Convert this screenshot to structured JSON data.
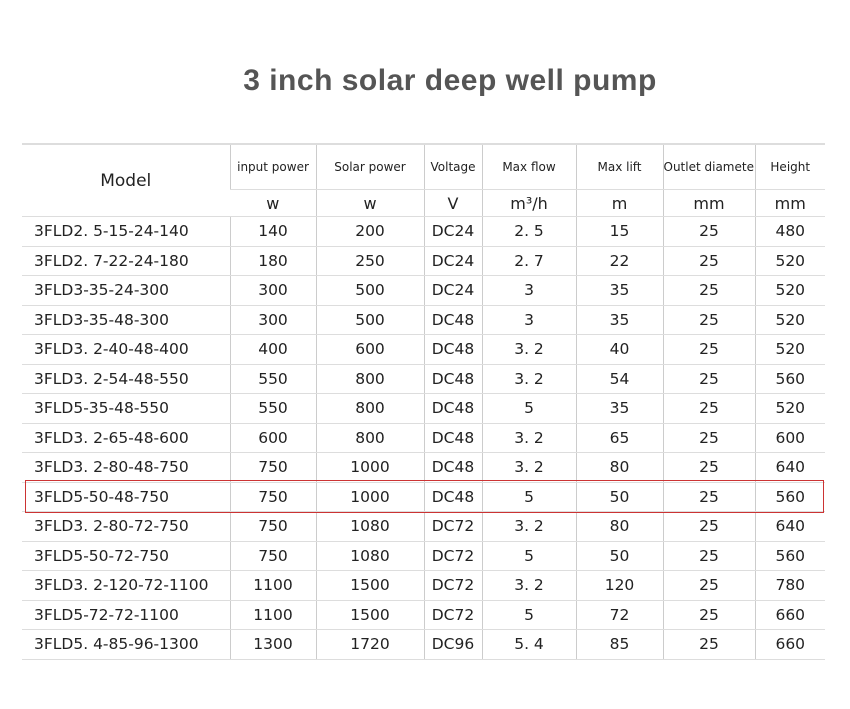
{
  "title": "3 inch solar deep well pump",
  "table": {
    "headers": [
      "Model",
      "input power",
      "Solar power",
      "Voltage",
      "Max flow",
      "Max lift",
      "Outlet diameter",
      "Height"
    ],
    "units": [
      "w",
      "w",
      "V",
      "m³/h",
      "m",
      "mm",
      "mm"
    ],
    "highlight_row": 9,
    "rows": [
      [
        "3FLD2. 5-15-24-140",
        "140",
        "200",
        "DC24",
        "2. 5",
        "15",
        "25",
        "480"
      ],
      [
        "3FLD2. 7-22-24-180",
        "180",
        "250",
        "DC24",
        "2. 7",
        "22",
        "25",
        "520"
      ],
      [
        "3FLD3-35-24-300",
        "300",
        "500",
        "DC24",
        "3",
        "35",
        "25",
        "520"
      ],
      [
        "3FLD3-35-48-300",
        "300",
        "500",
        "DC48",
        "3",
        "35",
        "25",
        "520"
      ],
      [
        "3FLD3. 2-40-48-400",
        "400",
        "600",
        "DC48",
        "3. 2",
        "40",
        "25",
        "520"
      ],
      [
        "3FLD3. 2-54-48-550",
        "550",
        "800",
        "DC48",
        "3. 2",
        "54",
        "25",
        "560"
      ],
      [
        "3FLD5-35-48-550",
        "550",
        "800",
        "DC48",
        "5",
        "35",
        "25",
        "520"
      ],
      [
        "3FLD3. 2-65-48-600",
        "600",
        "800",
        "DC48",
        "3. 2",
        "65",
        "25",
        "600"
      ],
      [
        "3FLD3. 2-80-48-750",
        "750",
        "1000",
        "DC48",
        "3. 2",
        "80",
        "25",
        "640"
      ],
      [
        "3FLD5-50-48-750",
        "750",
        "1000",
        "DC48",
        "5",
        "50",
        "25",
        "560"
      ],
      [
        "3FLD3. 2-80-72-750",
        "750",
        "1080",
        "DC72",
        "3. 2",
        "80",
        "25",
        "640"
      ],
      [
        "3FLD5-50-72-750",
        "750",
        "1080",
        "DC72",
        "5",
        "50",
        "25",
        "560"
      ],
      [
        "3FLD3. 2-120-72-1100",
        "1100",
        "1500",
        "DC72",
        "3. 2",
        "120",
        "25",
        "780"
      ],
      [
        "3FLD5-72-72-1100",
        "1100",
        "1500",
        "DC72",
        "5",
        "72",
        "25",
        "660"
      ],
      [
        "3FLD5. 4-85-96-1300",
        "1300",
        "1720",
        "DC96",
        "5. 4",
        "85",
        "25",
        "660"
      ]
    ]
  }
}
